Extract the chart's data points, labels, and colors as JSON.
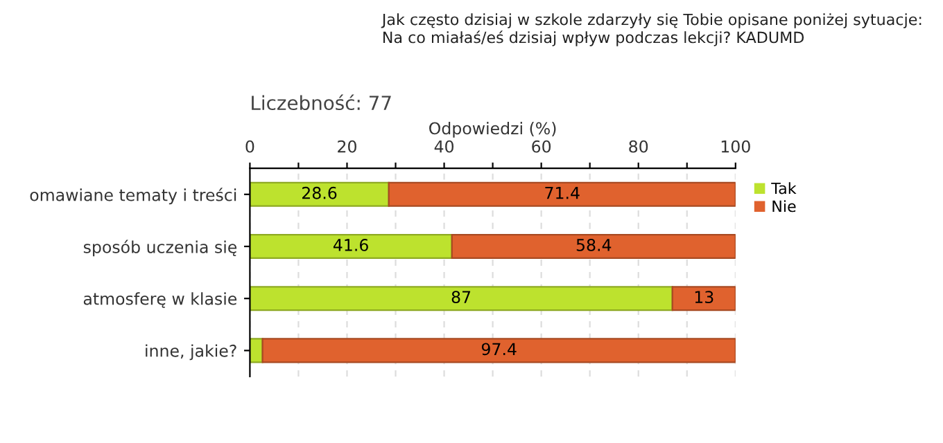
{
  "chart_data": {
    "type": "bar",
    "orientation": "horizontal",
    "stacked": true,
    "title": "Jak często dzisiaj w szkole zdarzyły się Tobie opisane poniżej sytuacje:\nNa co miałaś/eś dzisiaj wpływ podczas lekcji? KADUMD",
    "subtitle": "Liczebność: 77",
    "xlabel": "Odpowiedzi (%)",
    "categories": [
      "omawiane tematy i treści",
      "sposób uczenia się",
      "atmosferę w klasie",
      "inne, jakie?"
    ],
    "series": [
      {
        "name": "Tak",
        "color": "#bde22e",
        "values": [
          28.6,
          41.6,
          87,
          2.6
        ],
        "value_labels": [
          "28.6",
          "41.6",
          "87",
          null
        ]
      },
      {
        "name": "Nie",
        "color": "#e0622e",
        "values": [
          71.4,
          58.4,
          13,
          97.4
        ],
        "value_labels": [
          "71.4",
          "58.4",
          "13",
          "97.4"
        ]
      }
    ],
    "xlim": [
      0,
      100
    ],
    "xticks": [
      0,
      {
        "value": 10,
        "label": null
      },
      20,
      {
        "value": 30,
        "label": null
      },
      40,
      {
        "value": 50,
        "label": null
      },
      60,
      {
        "value": 70,
        "label": null
      },
      80,
      {
        "value": 90,
        "label": null
      },
      100
    ],
    "grid": "x",
    "legend": "top right"
  }
}
